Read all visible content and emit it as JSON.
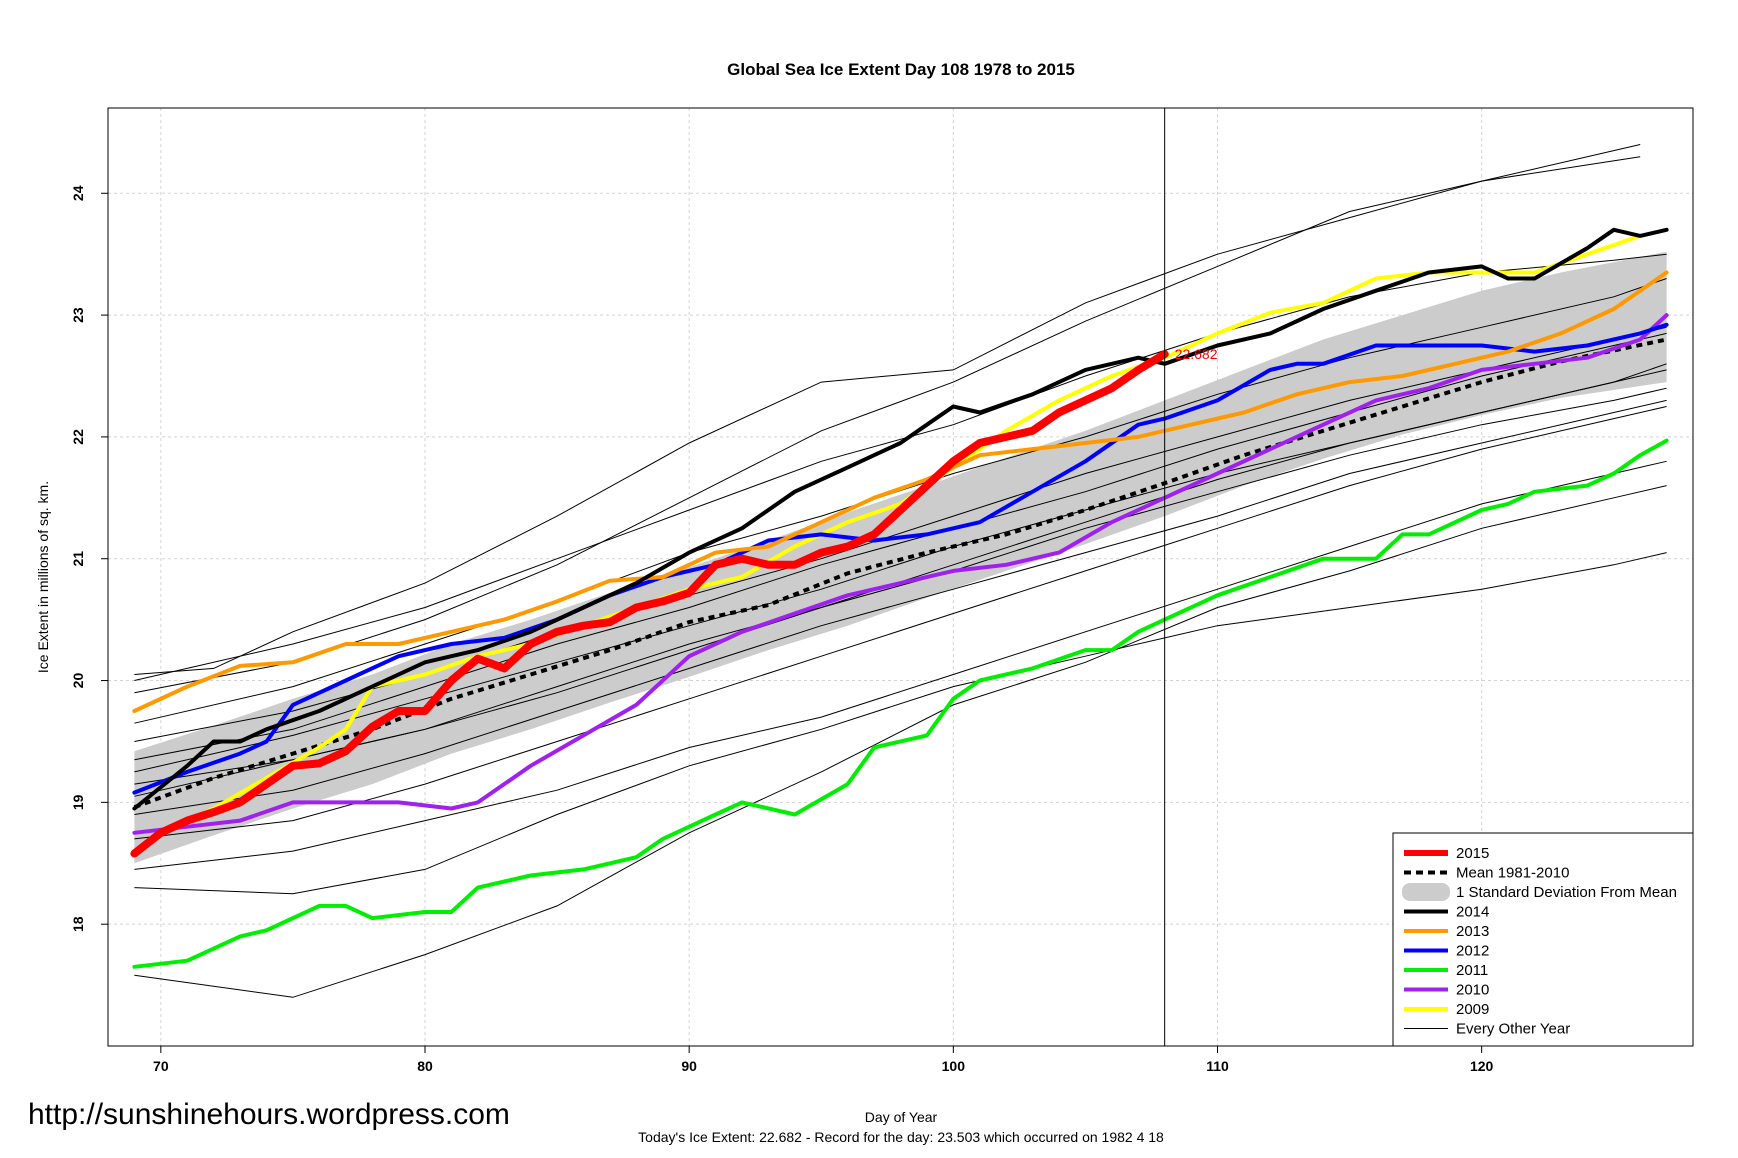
{
  "chart_data": {
    "type": "line",
    "title": "Global Sea Ice Extent Day 108 1978 to 2015",
    "xlabel": "Day of Year",
    "ylabel": "Ice Extent in millions of sq. km.",
    "xlim": [
      68,
      128
    ],
    "ylim": [
      17.0,
      24.7
    ],
    "x_ticks": [
      "70",
      "80",
      "90",
      "100",
      "110",
      "120"
    ],
    "y_ticks": [
      "18",
      "19",
      "20",
      "21",
      "22",
      "23",
      "24"
    ],
    "grid": true,
    "legend_position": "bottom-right",
    "marker_day": 108,
    "current_value_label": "22.682",
    "std_band": {
      "name": "1 Standard Deviation From Mean",
      "color": "#cccccc",
      "x": [
        69,
        72,
        75,
        78,
        81,
        84,
        87,
        90,
        93,
        96,
        99,
        102,
        105,
        108,
        111,
        114,
        117,
        120,
        123,
        127
      ],
      "upper": [
        19.42,
        19.63,
        19.85,
        20.05,
        20.3,
        20.5,
        20.72,
        20.93,
        21.15,
        21.38,
        21.6,
        21.83,
        22.05,
        22.3,
        22.55,
        22.8,
        23.0,
        23.2,
        23.35,
        23.52
      ],
      "lower": [
        18.5,
        18.73,
        18.95,
        19.15,
        19.4,
        19.6,
        19.82,
        20.03,
        20.25,
        20.45,
        20.68,
        20.9,
        21.12,
        21.35,
        21.6,
        21.82,
        22.02,
        22.18,
        22.32,
        22.45
      ]
    },
    "series": [
      {
        "name": "Mean 1981-2010",
        "color": "#000000",
        "width": 4,
        "dash": "6,5",
        "x": [
          69,
          72,
          75,
          78,
          81,
          84,
          87,
          90,
          93,
          96,
          99,
          102,
          105,
          108,
          111,
          114,
          117,
          120,
          123,
          127
        ],
        "values": [
          18.96,
          19.2,
          19.4,
          19.6,
          19.85,
          20.05,
          20.25,
          20.48,
          20.62,
          20.88,
          21.05,
          21.2,
          21.4,
          21.62,
          21.85,
          22.05,
          22.25,
          22.45,
          22.62,
          22.8
        ]
      },
      {
        "name": "2009",
        "color": "#ffff00",
        "width": 4,
        "x": [
          69,
          70,
          72,
          74,
          76,
          77,
          78,
          80,
          82,
          84,
          86,
          88,
          90,
          92,
          94,
          96,
          98,
          100,
          102,
          104,
          106,
          108,
          110,
          112,
          114,
          116,
          118,
          120,
          122,
          124,
          126
        ],
        "values": [
          18.6,
          18.75,
          18.95,
          19.2,
          19.45,
          19.6,
          19.95,
          20.05,
          20.2,
          20.3,
          20.45,
          20.6,
          20.75,
          20.85,
          21.1,
          21.3,
          21.45,
          21.75,
          22.05,
          22.3,
          22.5,
          22.65,
          22.85,
          23.02,
          23.1,
          23.3,
          23.35,
          23.35,
          23.35,
          23.5,
          23.65
        ]
      },
      {
        "name": "2010",
        "color": "#a020f0",
        "width": 4,
        "x": [
          69,
          71,
          73,
          75,
          77,
          79,
          81,
          82,
          84,
          86,
          88,
          90,
          92,
          94,
          96,
          98,
          100,
          102,
          104,
          106,
          108,
          110,
          112,
          114,
          116,
          118,
          120,
          122,
          124,
          126,
          127
        ],
        "values": [
          18.75,
          18.8,
          18.85,
          19.0,
          19.0,
          19.0,
          18.95,
          19.0,
          19.3,
          19.55,
          19.8,
          20.2,
          20.4,
          20.55,
          20.7,
          20.8,
          20.9,
          20.95,
          21.05,
          21.3,
          21.5,
          21.7,
          21.9,
          22.1,
          22.3,
          22.4,
          22.55,
          22.6,
          22.65,
          22.8,
          23.0
        ]
      },
      {
        "name": "2011",
        "color": "#00ee00",
        "width": 4,
        "x": [
          69,
          71,
          73,
          74,
          76,
          77,
          78,
          80,
          81,
          82,
          84,
          86,
          88,
          89,
          91,
          92,
          94,
          96,
          97,
          99,
          100,
          101,
          103,
          105,
          106,
          107,
          108,
          110,
          112,
          114,
          116,
          117,
          118,
          120,
          121,
          122,
          124,
          125,
          126,
          127
        ],
        "values": [
          17.65,
          17.7,
          17.9,
          17.95,
          18.15,
          18.15,
          18.05,
          18.1,
          18.1,
          18.3,
          18.4,
          18.45,
          18.55,
          18.7,
          18.9,
          19.0,
          18.9,
          19.15,
          19.45,
          19.55,
          19.85,
          20.0,
          20.1,
          20.25,
          20.25,
          20.4,
          20.5,
          20.7,
          20.85,
          21.0,
          21.0,
          21.2,
          21.2,
          21.4,
          21.45,
          21.55,
          21.6,
          21.7,
          21.85,
          21.97
        ]
      },
      {
        "name": "2012",
        "color": "#0000ff",
        "width": 4,
        "x": [
          69,
          71,
          73,
          74,
          75,
          77,
          79,
          81,
          83,
          85,
          87,
          89,
          91,
          93,
          95,
          97,
          99,
          101,
          103,
          105,
          107,
          108,
          110,
          112,
          113,
          114,
          116,
          118,
          120,
          122,
          124,
          126,
          127
        ],
        "values": [
          19.08,
          19.25,
          19.4,
          19.5,
          19.8,
          20.0,
          20.2,
          20.3,
          20.35,
          20.5,
          20.7,
          20.85,
          20.95,
          21.15,
          21.2,
          21.15,
          21.2,
          21.3,
          21.55,
          21.8,
          22.1,
          22.15,
          22.3,
          22.55,
          22.6,
          22.6,
          22.75,
          22.75,
          22.75,
          22.7,
          22.75,
          22.85,
          22.92
        ]
      },
      {
        "name": "2013",
        "color": "#ff9900",
        "width": 4,
        "x": [
          69,
          71,
          73,
          75,
          77,
          79,
          81,
          83,
          85,
          87,
          89,
          91,
          93,
          95,
          97,
          99,
          101,
          103,
          105,
          107,
          109,
          111,
          113,
          115,
          117,
          119,
          121,
          123,
          125,
          127
        ],
        "values": [
          19.75,
          19.95,
          20.12,
          20.15,
          20.3,
          20.3,
          20.4,
          20.5,
          20.65,
          20.82,
          20.85,
          21.05,
          21.1,
          21.3,
          21.5,
          21.65,
          21.85,
          21.9,
          21.95,
          22.0,
          22.1,
          22.2,
          22.35,
          22.45,
          22.5,
          22.6,
          22.7,
          22.85,
          23.05,
          23.35
        ]
      },
      {
        "name": "2014",
        "color": "#000000",
        "width": 4,
        "x": [
          69,
          71,
          72,
          73,
          74,
          76,
          78,
          80,
          82,
          84,
          86,
          88,
          90,
          92,
          94,
          96,
          98,
          99,
          100,
          101,
          103,
          105,
          107,
          108,
          110,
          112,
          114,
          116,
          118,
          120,
          121,
          122,
          124,
          125,
          126,
          127
        ],
        "values": [
          18.95,
          19.3,
          19.5,
          19.5,
          19.6,
          19.75,
          19.95,
          20.15,
          20.25,
          20.4,
          20.6,
          20.8,
          21.05,
          21.25,
          21.55,
          21.75,
          21.95,
          22.1,
          22.25,
          22.2,
          22.35,
          22.55,
          22.65,
          22.6,
          22.75,
          22.85,
          23.05,
          23.2,
          23.35,
          23.4,
          23.3,
          23.3,
          23.55,
          23.7,
          23.65,
          23.7
        ]
      },
      {
        "name": "2015",
        "color": "#ff0000",
        "width": 8,
        "x": [
          69,
          70,
          71,
          72,
          73,
          74,
          75,
          76,
          77,
          78,
          79,
          80,
          81,
          82,
          83,
          84,
          85,
          86,
          87,
          88,
          89,
          90,
          91,
          92,
          93,
          94,
          95,
          96,
          97,
          98,
          99,
          100,
          101,
          102,
          103,
          104,
          105,
          106,
          107,
          108
        ],
        "values": [
          18.58,
          18.75,
          18.85,
          18.92,
          19.0,
          19.15,
          19.3,
          19.32,
          19.42,
          19.62,
          19.75,
          19.75,
          20.0,
          20.18,
          20.1,
          20.3,
          20.4,
          20.45,
          20.48,
          20.6,
          20.65,
          20.72,
          20.95,
          21.0,
          20.95,
          20.95,
          21.05,
          21.1,
          21.2,
          21.4,
          21.6,
          21.8,
          21.95,
          22.0,
          22.05,
          22.2,
          22.3,
          22.4,
          22.55,
          22.68
        ]
      }
    ],
    "other_years": {
      "name": "Every Other Year",
      "color": "#000000",
      "width": 1,
      "lines": [
        {
          "x": [
            69,
            75,
            80,
            85,
            90,
            95,
            100,
            105,
            110,
            115,
            120,
            125,
            127
          ],
          "values": [
            17.58,
            17.4,
            17.75,
            18.15,
            18.75,
            19.25,
            19.8,
            20.15,
            20.6,
            20.9,
            21.25,
            21.5,
            21.6
          ]
        },
        {
          "x": [
            69,
            75,
            80,
            85,
            90,
            95,
            100,
            105,
            110,
            115,
            120,
            125,
            127
          ],
          "values": [
            18.3,
            18.25,
            18.45,
            18.9,
            19.3,
            19.6,
            19.95,
            20.2,
            20.45,
            20.6,
            20.75,
            20.95,
            21.05
          ]
        },
        {
          "x": [
            69,
            75,
            80,
            85,
            90,
            95,
            100,
            105,
            110,
            115,
            120,
            125,
            127
          ],
          "values": [
            18.45,
            18.6,
            18.85,
            19.1,
            19.45,
            19.7,
            20.05,
            20.4,
            20.75,
            21.1,
            21.45,
            21.7,
            21.8
          ]
        },
        {
          "x": [
            69,
            75,
            80,
            85,
            90,
            95,
            100,
            105,
            110,
            115,
            120,
            125,
            127
          ],
          "values": [
            19.05,
            19.35,
            19.6,
            19.9,
            20.25,
            20.6,
            20.9,
            21.25,
            21.55,
            21.85,
            22.1,
            22.3,
            22.4
          ]
        },
        {
          "x": [
            69,
            75,
            80,
            85,
            90,
            95,
            100,
            105,
            110,
            115,
            120,
            125,
            127
          ],
          "values": [
            19.25,
            19.55,
            19.85,
            20.15,
            20.45,
            20.75,
            21.1,
            21.4,
            21.7,
            21.95,
            22.2,
            22.45,
            22.55
          ]
        },
        {
          "x": [
            69,
            75,
            80,
            85,
            90,
            95,
            100,
            105,
            110,
            115,
            120,
            125,
            127
          ],
          "values": [
            19.5,
            19.75,
            20.05,
            20.4,
            20.7,
            21.0,
            21.35,
            21.7,
            22.0,
            22.3,
            22.55,
            22.8,
            22.9
          ]
        },
        {
          "x": [
            69,
            75,
            80,
            85,
            90,
            95,
            100,
            105,
            110,
            115,
            120,
            125,
            127
          ],
          "values": [
            18.9,
            19.1,
            19.4,
            19.75,
            20.1,
            20.45,
            20.75,
            21.05,
            21.35,
            21.7,
            21.95,
            22.2,
            22.3
          ]
        },
        {
          "x": [
            69,
            75,
            80,
            85,
            90,
            95,
            100,
            105,
            110,
            115,
            120,
            125,
            127
          ],
          "values": [
            19.65,
            19.95,
            20.3,
            20.65,
            21.05,
            21.35,
            21.7,
            22.0,
            22.35,
            22.65,
            22.9,
            23.15,
            23.3
          ]
        },
        {
          "x": [
            69,
            75,
            80,
            85,
            90,
            95,
            100,
            105,
            110,
            115,
            120,
            125,
            127
          ],
          "values": [
            20.0,
            20.3,
            20.6,
            21.0,
            21.4,
            21.8,
            22.1,
            22.5,
            22.85,
            23.15,
            23.35,
            23.45,
            23.5
          ]
        },
        {
          "x": [
            69,
            72,
            75,
            80,
            85,
            90,
            95,
            100,
            105,
            110,
            115,
            120,
            126
          ],
          "values": [
            20.05,
            20.1,
            20.4,
            20.8,
            21.35,
            21.95,
            22.45,
            22.55,
            23.1,
            23.5,
            23.8,
            24.1,
            24.4
          ]
        },
        {
          "x": [
            69,
            75,
            80,
            85,
            90,
            95,
            100,
            105,
            110,
            115,
            120,
            126
          ],
          "values": [
            19.9,
            20.15,
            20.5,
            20.95,
            21.5,
            22.05,
            22.45,
            22.95,
            23.4,
            23.85,
            24.1,
            24.3
          ]
        },
        {
          "x": [
            69,
            75,
            80,
            85,
            90,
            95,
            100,
            105,
            110,
            115,
            120,
            125,
            127
          ],
          "values": [
            19.15,
            19.35,
            19.6,
            19.95,
            20.3,
            20.6,
            20.95,
            21.3,
            21.65,
            21.95,
            22.2,
            22.45,
            22.6
          ]
        },
        {
          "x": [
            69,
            75,
            80,
            85,
            90,
            95,
            100,
            105,
            110,
            115,
            120,
            125,
            127
          ],
          "values": [
            18.7,
            18.85,
            19.15,
            19.5,
            19.85,
            20.2,
            20.55,
            20.9,
            21.25,
            21.6,
            21.9,
            22.15,
            22.25
          ]
        },
        {
          "x": [
            69,
            75,
            80,
            85,
            90,
            95,
            100,
            105,
            110,
            115,
            120,
            125,
            127
          ],
          "values": [
            19.35,
            19.6,
            19.95,
            20.3,
            20.6,
            20.95,
            21.25,
            21.55,
            21.9,
            22.2,
            22.5,
            22.75,
            22.85
          ]
        }
      ]
    },
    "legend": [
      {
        "label": "2015",
        "kind": "line",
        "color": "#ff0000",
        "width": 6
      },
      {
        "label": "Mean 1981-2010",
        "kind": "dash",
        "color": "#000000",
        "width": 4
      },
      {
        "label": "1 Standard Deviation From Mean",
        "kind": "box",
        "color": "#cccccc"
      },
      {
        "label": "2014",
        "kind": "line",
        "color": "#000000",
        "width": 4
      },
      {
        "label": "2013",
        "kind": "line",
        "color": "#ff9900",
        "width": 4
      },
      {
        "label": "2012",
        "kind": "line",
        "color": "#0000ff",
        "width": 4
      },
      {
        "label": "2011",
        "kind": "line",
        "color": "#00ee00",
        "width": 4
      },
      {
        "label": "2010",
        "kind": "line",
        "color": "#a020f0",
        "width": 4
      },
      {
        "label": "2009",
        "kind": "line",
        "color": "#ffff00",
        "width": 4
      },
      {
        "label": "Every Other Year",
        "kind": "line",
        "color": "#000000",
        "width": 1
      }
    ]
  },
  "page": {
    "url": "http://sunshinehours.wordpress.com",
    "footer": "Today's Ice Extent: 22.682  - Record for the day: 23.503 which occurred on 1982 4 18"
  }
}
